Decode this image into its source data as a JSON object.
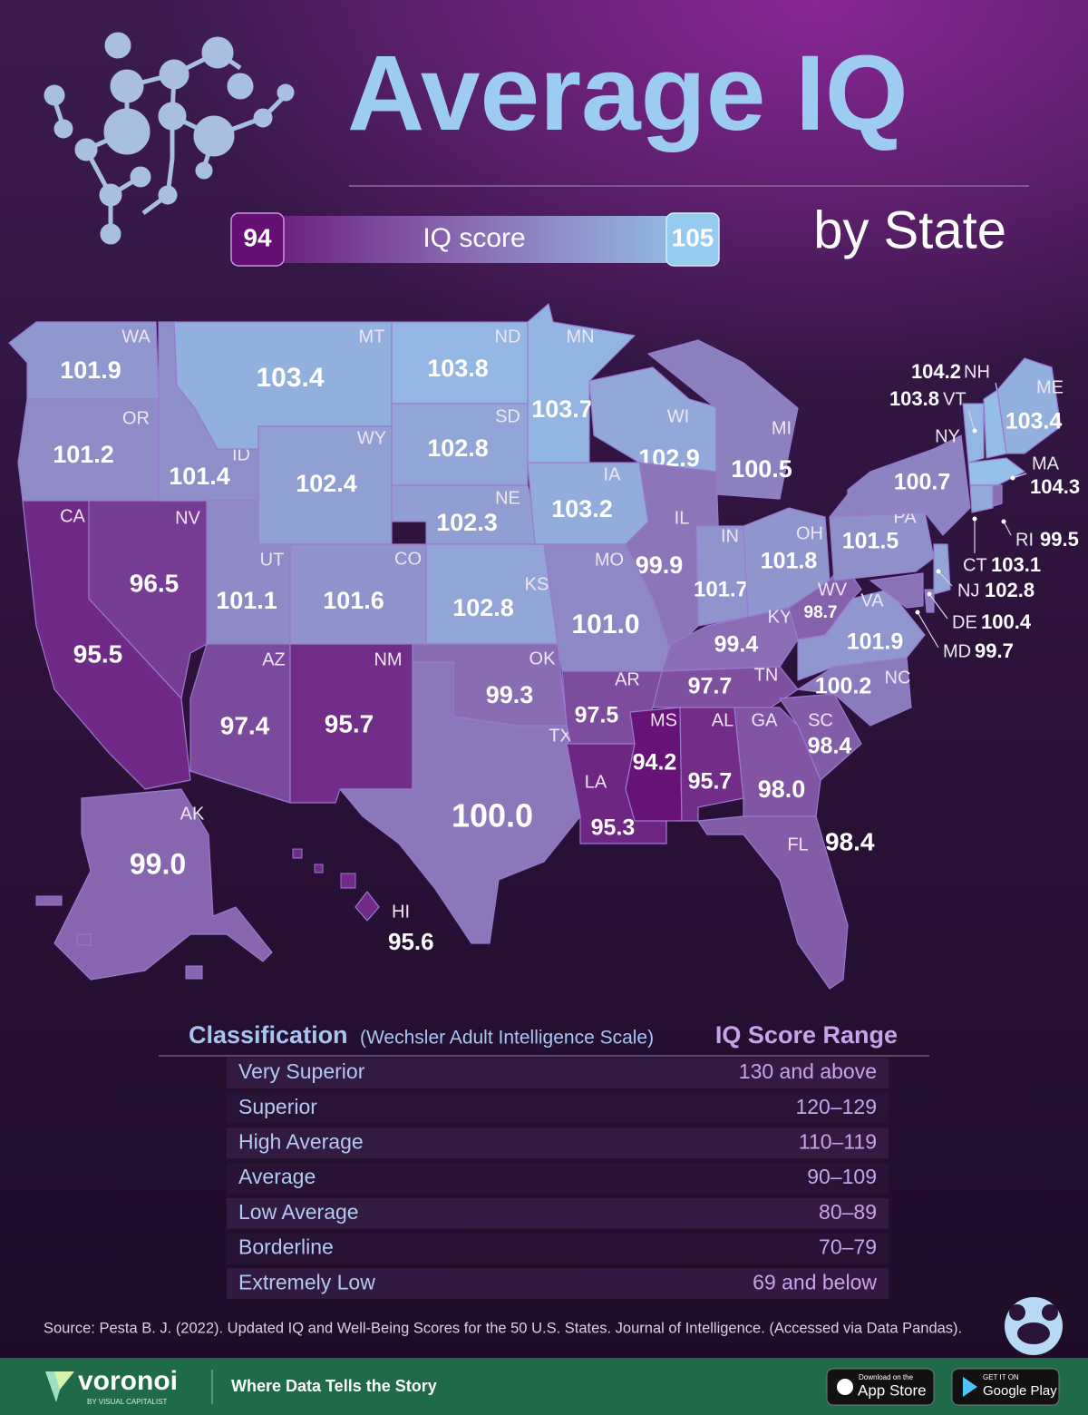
{
  "title": "Average IQ",
  "subtitle": "by State",
  "scale": {
    "min": 94,
    "max": 105,
    "label": "IQ score",
    "colors": [
      "#650f74",
      "#8b6fb5",
      "#95cbee"
    ]
  },
  "states": [
    {
      "code": "WA",
      "value": 101.9
    },
    {
      "code": "OR",
      "value": 101.2
    },
    {
      "code": "CA",
      "value": 95.5
    },
    {
      "code": "NV",
      "value": 96.5
    },
    {
      "code": "ID",
      "value": 101.4
    },
    {
      "code": "MT",
      "value": 103.4
    },
    {
      "code": "WY",
      "value": 102.4
    },
    {
      "code": "UT",
      "value": 101.1
    },
    {
      "code": "CO",
      "value": 101.6
    },
    {
      "code": "AZ",
      "value": 97.4
    },
    {
      "code": "NM",
      "value": 95.7
    },
    {
      "code": "ND",
      "value": 103.8
    },
    {
      "code": "SD",
      "value": 102.8
    },
    {
      "code": "NE",
      "value": 102.3
    },
    {
      "code": "KS",
      "value": 102.8
    },
    {
      "code": "OK",
      "value": 99.3
    },
    {
      "code": "TX",
      "value": 100,
      "label": "100.0"
    },
    {
      "code": "MN",
      "value": 103.7
    },
    {
      "code": "IA",
      "value": 103.2
    },
    {
      "code": "WI",
      "value": 102.9
    },
    {
      "code": "MI",
      "value": 100.5
    },
    {
      "code": "IL",
      "value": 99.9
    },
    {
      "code": "IN",
      "value": 101.7
    },
    {
      "code": "OH",
      "value": 101.8
    },
    {
      "code": "MO",
      "value": 101,
      "label": "101.0"
    },
    {
      "code": "KY",
      "value": 99.4
    },
    {
      "code": "TN",
      "value": 97.7
    },
    {
      "code": "AR",
      "value": 97.5
    },
    {
      "code": "LA",
      "value": 95.3
    },
    {
      "code": "MS",
      "value": 94.2
    },
    {
      "code": "AL",
      "value": 95.7
    },
    {
      "code": "GA",
      "value": 98,
      "label": "98.0"
    },
    {
      "code": "FL",
      "value": 98.4
    },
    {
      "code": "SC",
      "value": 98.4
    },
    {
      "code": "NC",
      "value": 100.2
    },
    {
      "code": "VA",
      "value": 101.9
    },
    {
      "code": "WV",
      "value": 98.7
    },
    {
      "code": "PA",
      "value": 101.5
    },
    {
      "code": "NY",
      "value": 100.7
    },
    {
      "code": "VT",
      "value": 103.8
    },
    {
      "code": "NH",
      "value": 104.2
    },
    {
      "code": "ME",
      "value": 103.4
    },
    {
      "code": "MA",
      "value": 104.3
    },
    {
      "code": "CT",
      "value": 103.1
    },
    {
      "code": "RI",
      "value": 99.5
    },
    {
      "code": "NJ",
      "value": 102.8
    },
    {
      "code": "DE",
      "value": 100.4
    },
    {
      "code": "MD",
      "value": 99.7
    },
    {
      "code": "AK",
      "value": 99,
      "label": "99.0"
    },
    {
      "code": "HI",
      "value": 95.6
    }
  ],
  "table": {
    "header": {
      "title": "Classification",
      "subtitle": "(Wechsler Adult Intelligence Scale)",
      "range": "IQ Score Range"
    },
    "rows": [
      [
        "Very Superior",
        "130 and above"
      ],
      [
        "Superior",
        "120–129"
      ],
      [
        "High Average",
        "110–119"
      ],
      [
        "Average",
        "90–109"
      ],
      [
        "Low Average",
        "80–89"
      ],
      [
        "Borderline",
        "70–79"
      ],
      [
        "Extremely Low",
        "69 and below"
      ]
    ]
  },
  "source": "Source: Pesta B. J. (2022). Updated IQ and Well-Being Scores for the 50 U.S. States. Journal of Intelligence. (Accessed via Data Pandas).",
  "footer": {
    "brand": "voronoi",
    "byline": "BY VISUAL CAPITALIST",
    "tagline": "Where Data Tells the Story",
    "app_store_top": "Download on the",
    "app_store": "App Store",
    "google_top": "GET IT ON",
    "google": "Google Play"
  }
}
